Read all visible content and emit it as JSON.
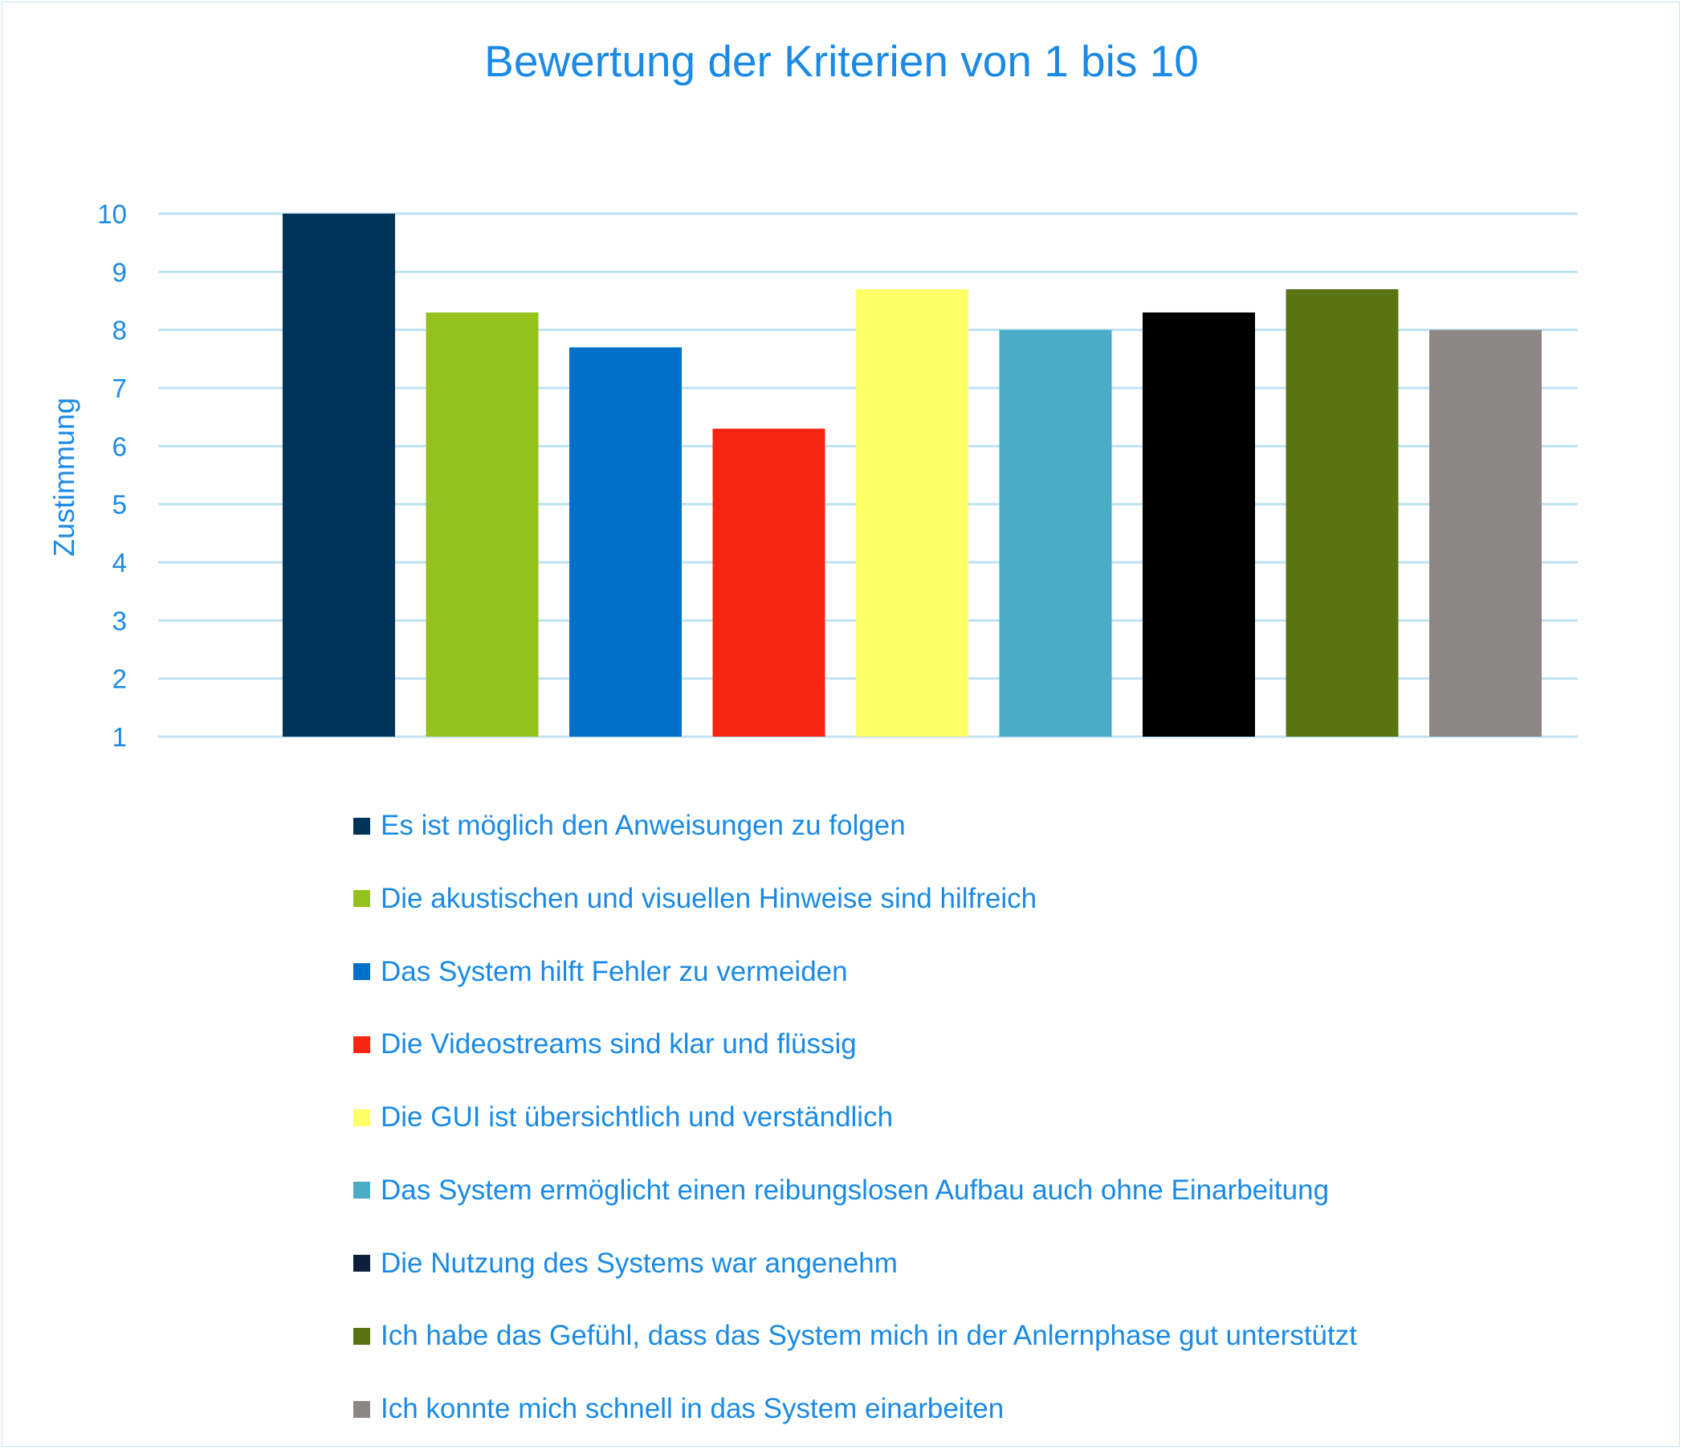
{
  "chart_data": {
    "type": "bar",
    "title": "Bewertung der Kriterien von 1 bis 10",
    "xlabel": "",
    "ylabel": "Zustimmung",
    "ylim": [
      1,
      10
    ],
    "yticks": [
      "1",
      "2",
      "3",
      "4",
      "5",
      "6",
      "7",
      "8",
      "9",
      "10"
    ],
    "grid": true,
    "legend_position": "bottom",
    "series": [
      {
        "name": "Es ist möglich den Anweisungen zu folgen",
        "value": 10,
        "color": "#003358"
      },
      {
        "name": "Die akustischen und visuellen Hinweise sind hilfreich",
        "value": 8.3,
        "color": "#95c11e"
      },
      {
        "name": "Das System hilft Fehler zu vermeiden",
        "value": 7.7,
        "color": "#0070c8"
      },
      {
        "name": "Die Videostreams sind klar und flüssig",
        "value": 6.3,
        "color": "#fa2510"
      },
      {
        "name": "Die GUI ist übersichtlich und verständlich",
        "value": 8.7,
        "color": "#ffff66"
      },
      {
        "name": "Das System ermöglicht einen reibungslosen Aufbau auch ohne Einarbeitung",
        "value": 8,
        "color": "#4bacc6"
      },
      {
        "name": "Die Nutzung des Systems war angenehm",
        "value": 8.3,
        "color": "#000000"
      },
      {
        "name": "Ich habe das Gefühl, dass das System mich in der Anlernphase gut unterstützt",
        "value": 8.7,
        "color": "#5a7412"
      },
      {
        "name": "Ich konnte mich schnell in das System einarbeiten",
        "value": 8,
        "color": "#8e8684"
      }
    ],
    "colors": {
      "text": "#1a8ae6",
      "grid": "#bfe3f4",
      "legend_dark_swatch": "#0d1f3c"
    }
  }
}
